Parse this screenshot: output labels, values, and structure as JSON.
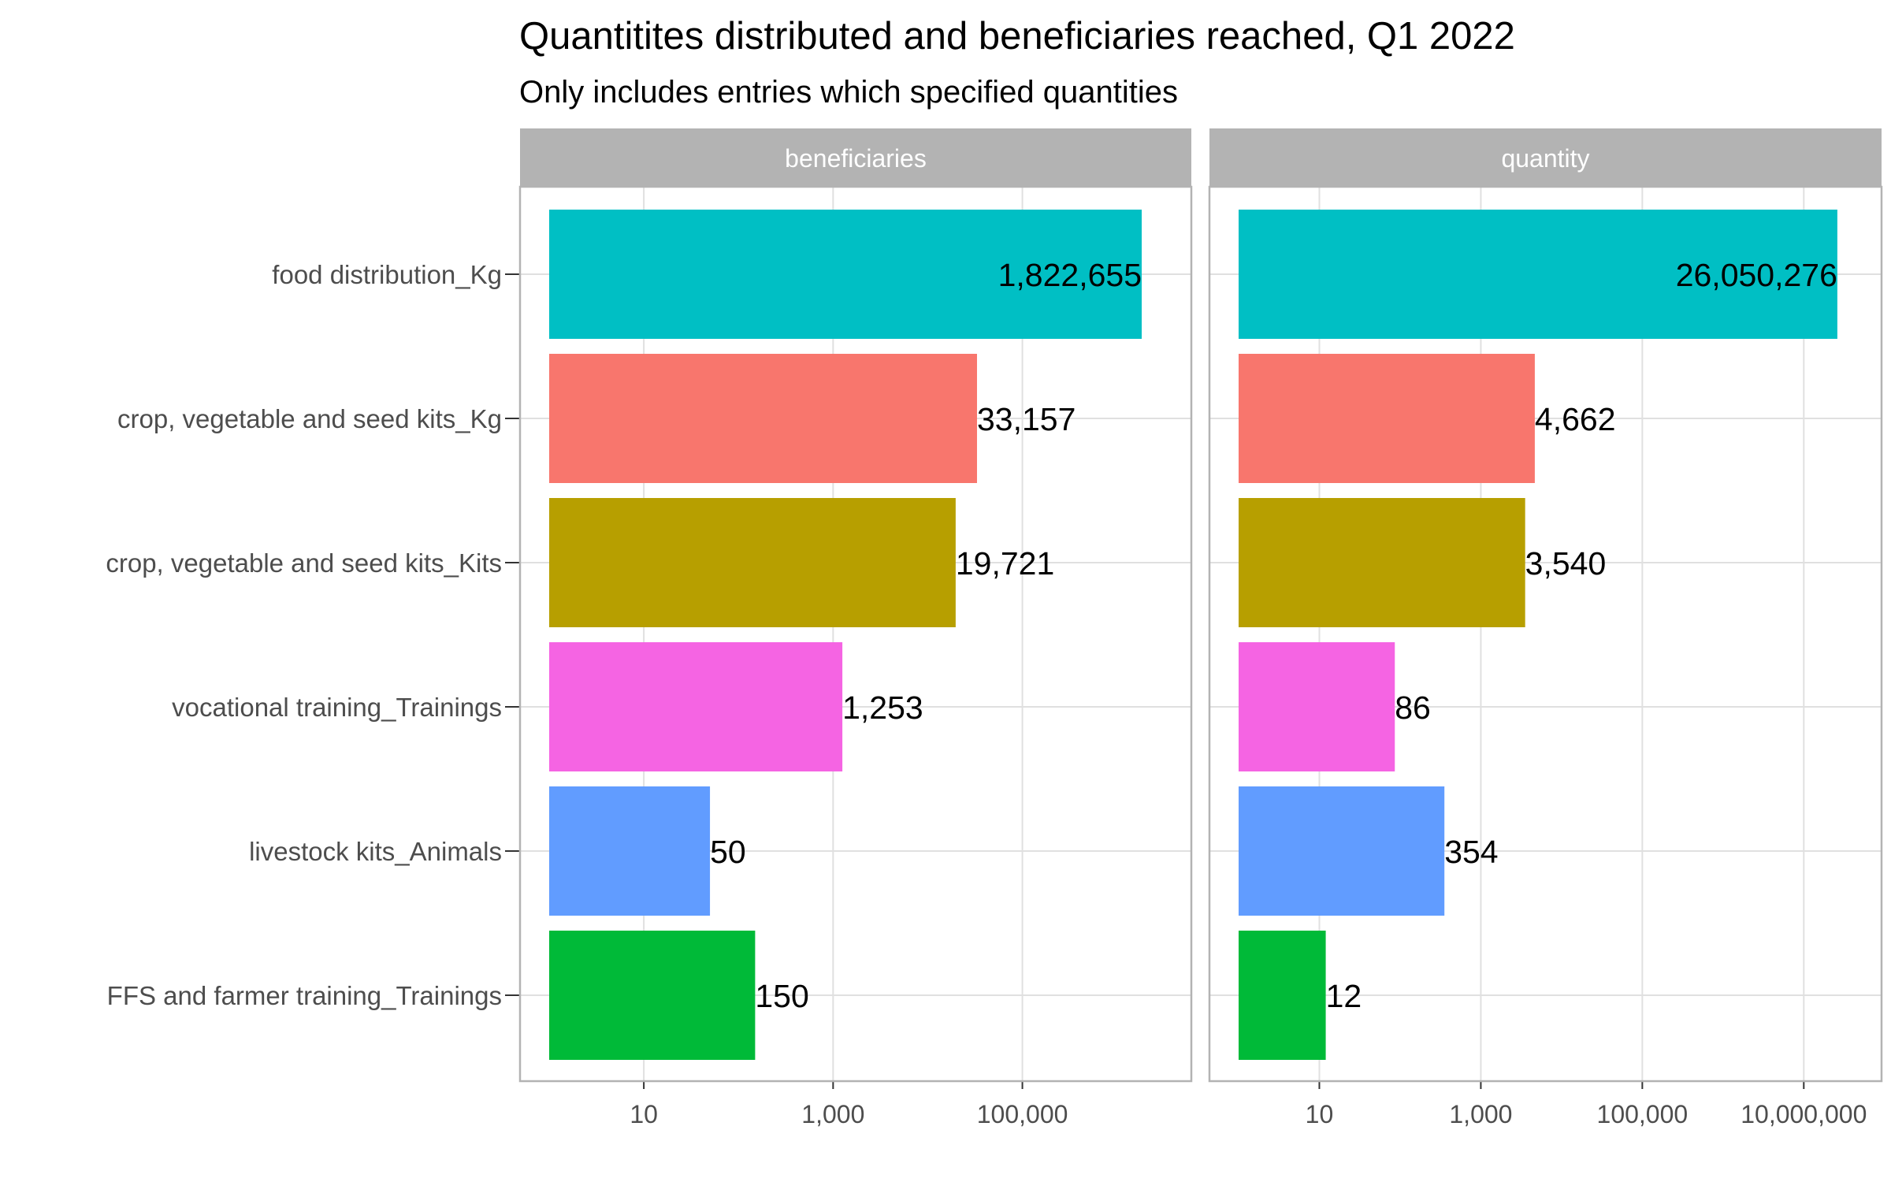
{
  "chart_data": {
    "type": "bar",
    "orientation": "horizontal",
    "title": "Quantitites distributed and beneficiaries reached, Q1 2022",
    "subtitle": "Only includes entries which specified quantities",
    "x_scale": "log10",
    "grid": true,
    "legend": "none",
    "categories": [
      "food distribution_Kg",
      "crop, vegetable and seed kits_Kg",
      "crop, vegetable and seed kits_Kits",
      "vocational training_Trainings",
      "livestock kits_Animals",
      "FFS and farmer training_Trainings"
    ],
    "colors": [
      "#00BFC4",
      "#F8766D",
      "#B79F00",
      "#F564E3",
      "#619CFF",
      "#00BA38"
    ],
    "panels": [
      {
        "name": "beneficiaries",
        "values": [
          1822655,
          33157,
          19721,
          1253,
          50,
          150
        ],
        "value_labels": [
          "1,822,655",
          "33,157",
          "19,721",
          "1,253",
          "50",
          "150"
        ],
        "xlim": [
          1,
          3000000
        ],
        "ticks": [
          10,
          1000,
          100000
        ],
        "tick_labels": [
          "10",
          "1,000",
          "100,000"
        ]
      },
      {
        "name": "quantity",
        "values": [
          26050276,
          4662,
          3540,
          86,
          354,
          12
        ],
        "value_labels": [
          "26,050,276",
          "4,662",
          "3,540",
          "86",
          "354",
          "12"
        ],
        "xlim": [
          1,
          40000000
        ],
        "ticks": [
          10,
          1000,
          100000,
          10000000
        ],
        "tick_labels": [
          "10",
          "1,000",
          "100,000",
          "10,000,000"
        ]
      }
    ]
  }
}
